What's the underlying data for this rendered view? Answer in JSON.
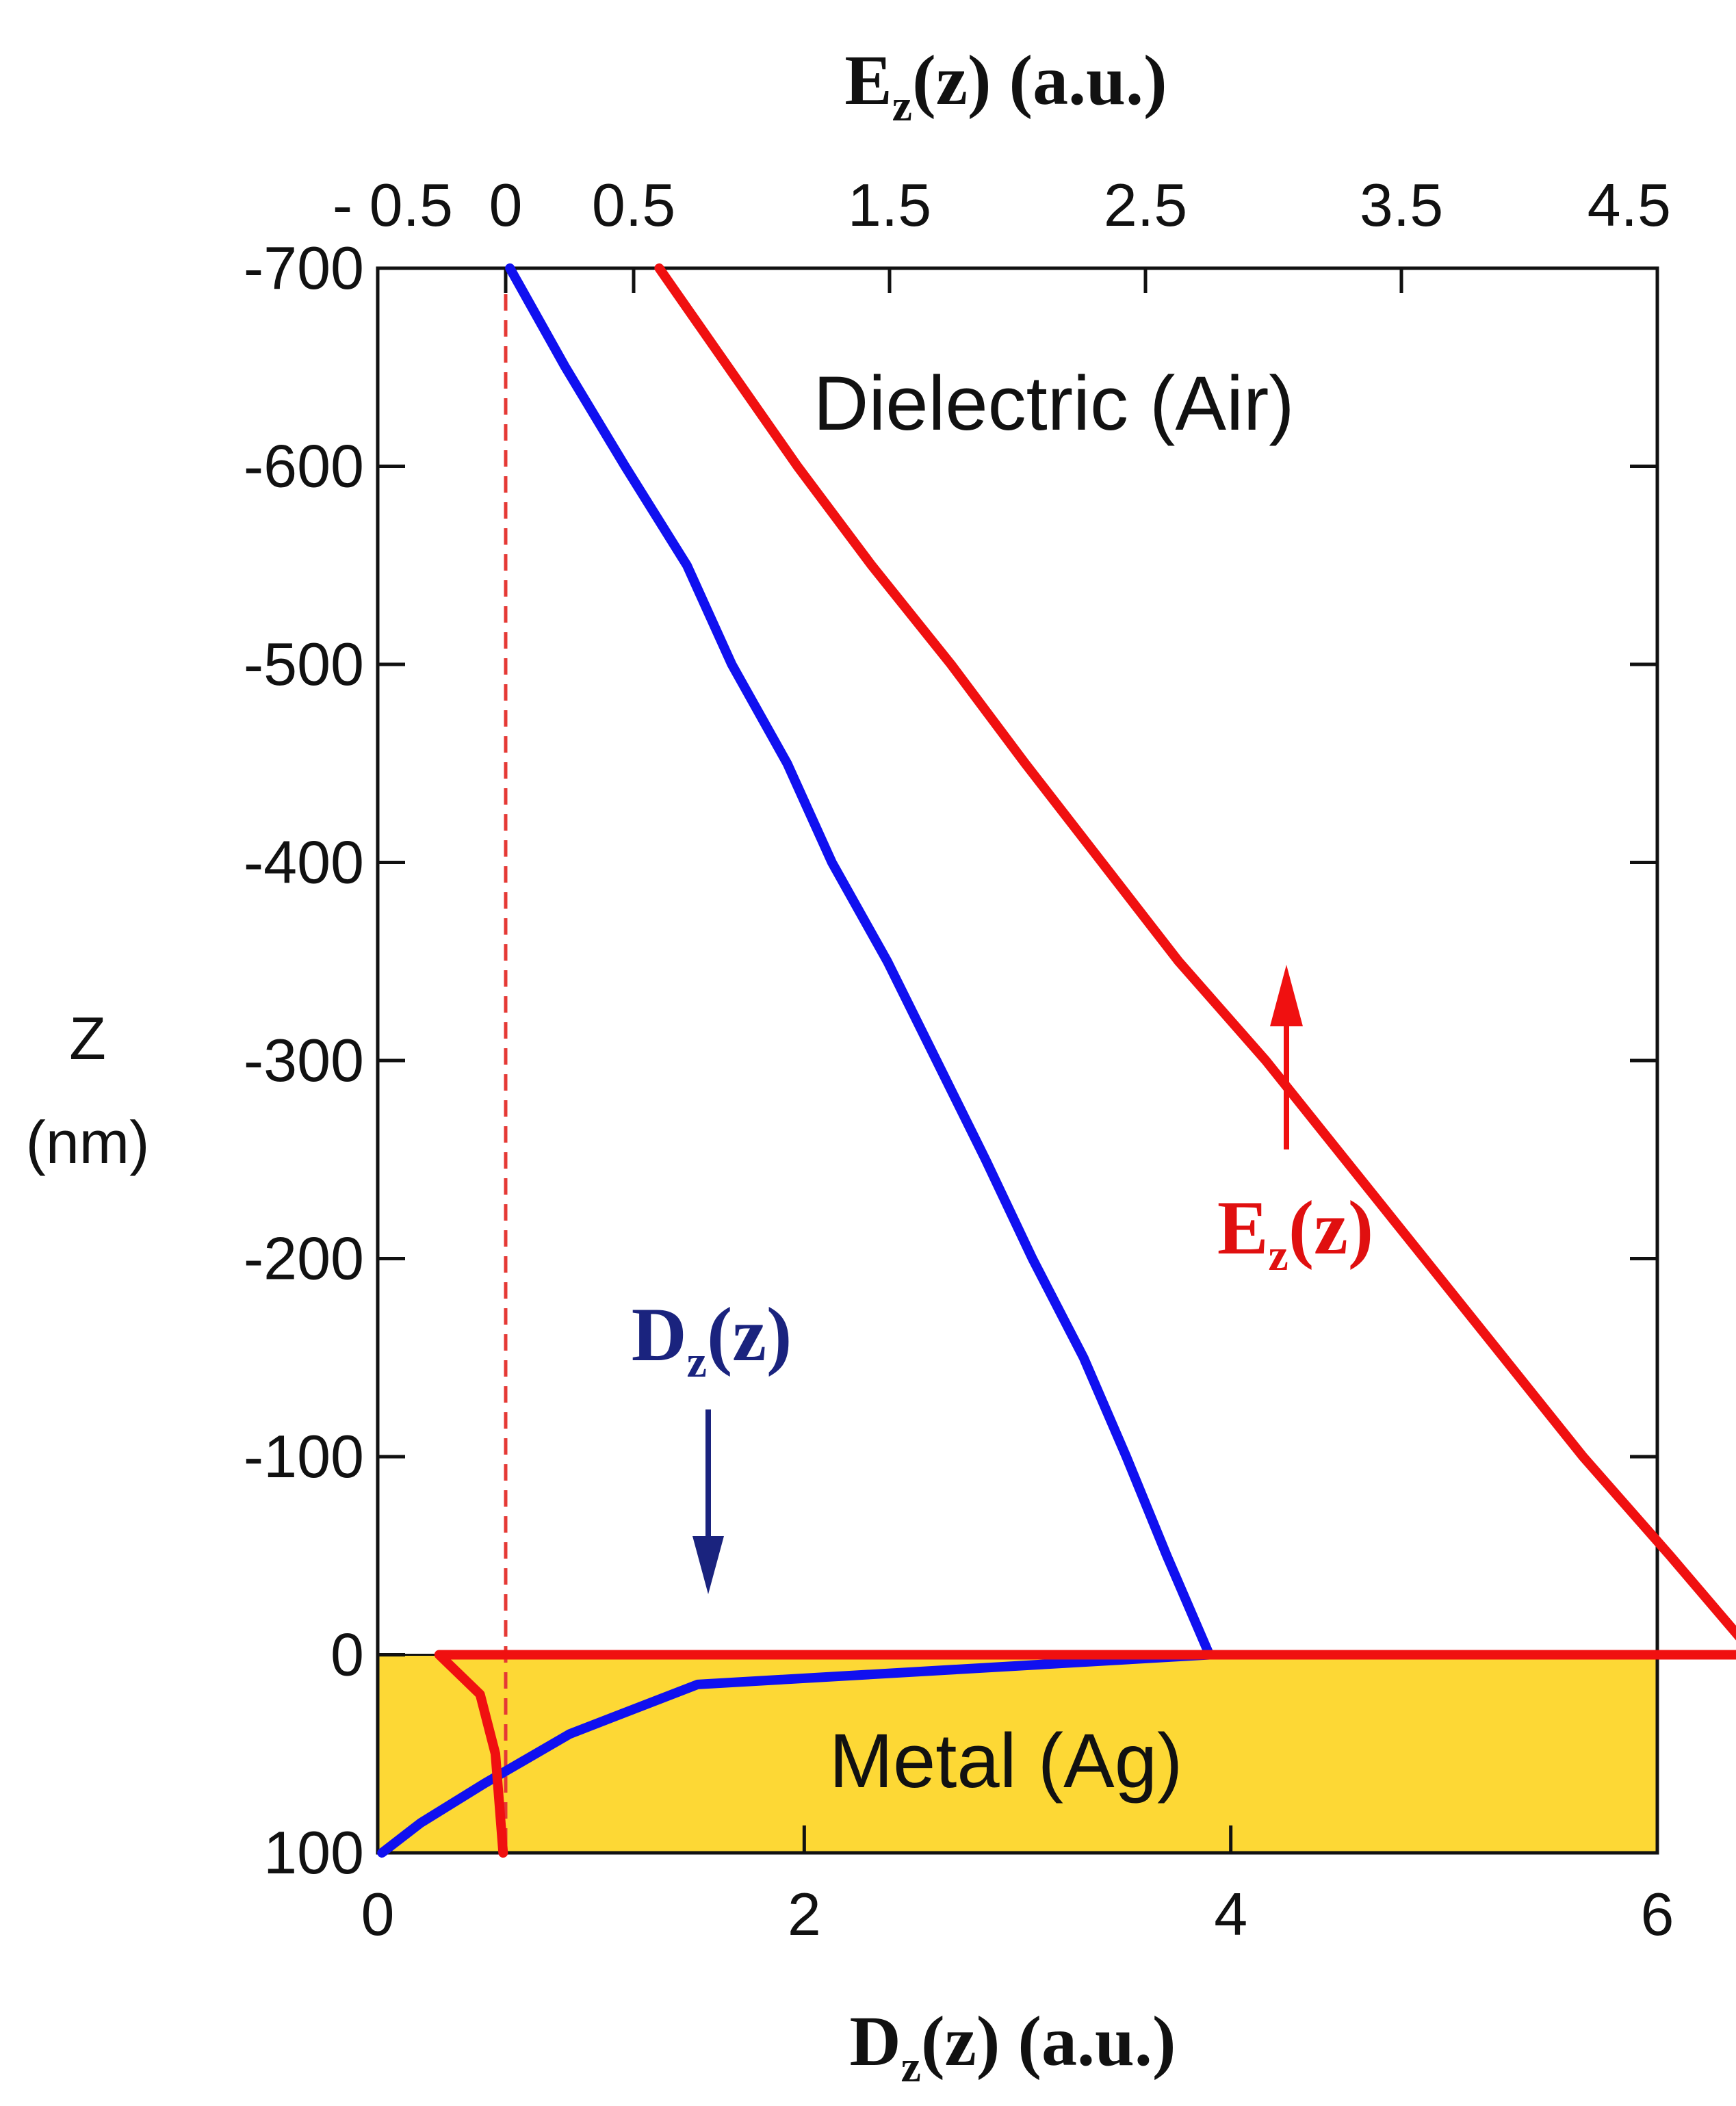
{
  "chart_data": {
    "type": "line",
    "title": "",
    "top_axis": {
      "label_base": "E",
      "label_sub": "z",
      "label_rest": "(z) (a.u.)",
      "ticks": [
        {
          "value": -0.5,
          "label": "- 0.5"
        },
        {
          "value": 0,
          "label": "0"
        },
        {
          "value": 0.5,
          "label": "0.5"
        },
        {
          "value": 1.5,
          "label": "1.5"
        },
        {
          "value": 2.5,
          "label": "2.5"
        },
        {
          "value": 3.5,
          "label": "3.5"
        },
        {
          "value": 4.5,
          "label": "4.5"
        }
      ],
      "range": [
        -0.5,
        4.5
      ]
    },
    "bottom_axis": {
      "label_base": "D",
      "label_sub": "z",
      "label_rest": "(z) (a.u.)",
      "ticks": [
        {
          "value": 0,
          "label": "0"
        },
        {
          "value": 2,
          "label": "2"
        },
        {
          "value": 4,
          "label": "4"
        },
        {
          "value": 6,
          "label": "6"
        }
      ],
      "range": [
        0,
        6
      ]
    },
    "y_axis": {
      "label_line1": "Z",
      "label_line2": "(nm)",
      "ticks": [
        {
          "value": -700,
          "label": "-700"
        },
        {
          "value": -600,
          "label": "-600"
        },
        {
          "value": -500,
          "label": "-500"
        },
        {
          "value": -400,
          "label": "-400"
        },
        {
          "value": -300,
          "label": "-300"
        },
        {
          "value": -200,
          "label": "-200"
        },
        {
          "value": -100,
          "label": "-100"
        },
        {
          "value": 0,
          "label": "0"
        },
        {
          "value": 100,
          "label": "100"
        }
      ],
      "range": [
        -700,
        100
      ],
      "direction": "down"
    },
    "regions": {
      "dielectric": {
        "label": "Dielectric (Air)"
      },
      "metal": {
        "label": "Metal (Ag)",
        "z_range": [
          0,
          100
        ],
        "color": "#FDD835"
      }
    },
    "reference_line": {
      "axis": "top",
      "value": 0,
      "style": "dashed",
      "color": "#E53935"
    },
    "series": [
      {
        "name_base": "D",
        "name_sub": "z",
        "name_rest": "(z)",
        "axis": "bottom",
        "color": "#1010F0",
        "label_color": "#1A237E",
        "points": [
          [
            0.62,
            -700
          ],
          [
            0.88,
            -650
          ],
          [
            1.16,
            -600
          ],
          [
            1.45,
            -550
          ],
          [
            1.66,
            -500
          ],
          [
            1.92,
            -450
          ],
          [
            2.13,
            -400
          ],
          [
            2.39,
            -350
          ],
          [
            2.62,
            -300
          ],
          [
            2.85,
            -250
          ],
          [
            3.07,
            -200
          ],
          [
            3.31,
            -150
          ],
          [
            3.51,
            -100
          ],
          [
            3.7,
            -50
          ],
          [
            3.9,
            0
          ],
          [
            1.5,
            15
          ],
          [
            0.9,
            40
          ],
          [
            0.5,
            65
          ],
          [
            0.2,
            85
          ],
          [
            0.02,
            100
          ]
        ]
      },
      {
        "name_base": "E",
        "name_sub": "z",
        "name_rest": "(z)",
        "axis": "top",
        "color": "#F01010",
        "label_color": "#E01010",
        "points": [
          [
            0.6,
            -700
          ],
          [
            0.87,
            -650
          ],
          [
            1.14,
            -600
          ],
          [
            1.43,
            -550
          ],
          [
            1.74,
            -500
          ],
          [
            2.03,
            -450
          ],
          [
            2.33,
            -400
          ],
          [
            2.63,
            -350
          ],
          [
            2.97,
            -300
          ],
          [
            3.28,
            -250
          ],
          [
            3.59,
            -200
          ],
          [
            3.9,
            -150
          ],
          [
            4.21,
            -100
          ],
          [
            4.55,
            -50
          ],
          [
            4.88,
            0
          ],
          [
            -0.26,
            0
          ],
          [
            -0.1,
            20
          ],
          [
            -0.04,
            50
          ],
          [
            -0.01,
            100
          ]
        ]
      }
    ],
    "annotations": [
      {
        "series": "D",
        "arrow": "down",
        "color": "#1A237E"
      },
      {
        "series": "E",
        "arrow": "up",
        "color": "#F01010"
      }
    ]
  }
}
